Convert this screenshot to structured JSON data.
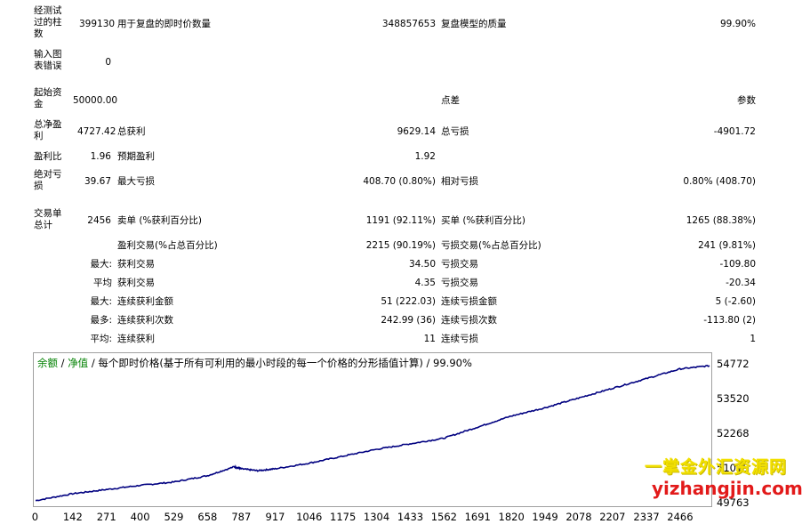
{
  "stats": {
    "bars_label": "经测试过的柱数",
    "bars_value": "399130",
    "ticks_label": "用于复盘的即时价数量",
    "ticks_value": "348857653",
    "quality_label": "复盘模型的质量",
    "quality_value": "99.90%",
    "errors_label": "输入图表错误",
    "errors_value": "0",
    "deposit_label": "起始资金",
    "deposit_value": "50000.00",
    "spread_label": "点差",
    "params_label": "参数",
    "net_label": "总净盈利",
    "net_value": "4727.42",
    "gross_profit_label": "总获利",
    "gross_profit_value": "9629.14",
    "gross_loss_label": "总亏损",
    "gross_loss_value": "-4901.72",
    "pf_label": "盈利比",
    "pf_value": "1.96",
    "payoff_label": "预期盈利",
    "payoff_value": "1.92",
    "abs_dd_label": "绝对亏损",
    "abs_dd_value": "39.67",
    "max_dd_label": "最大亏损",
    "max_dd_value": "408.70 (0.80%)",
    "rel_dd_label": "相对亏损",
    "rel_dd_value": "0.80% (408.70)",
    "trades_label": "交易单总计",
    "trades_value": "2456",
    "short_label": "卖单 (%获利百分比)",
    "short_value": "1191 (92.11%)",
    "long_label": "买单 (%获利百分比)",
    "long_value": "1265 (88.38%)",
    "win_label": "盈利交易(%占总百分比)",
    "win_value": "2215 (90.19%)",
    "loss_label": "亏损交易(%占总百分比)",
    "loss_value": "241 (9.81%)",
    "rows": [
      {
        "prefix": "最大:",
        "l1": "获利交易",
        "v1": "34.50",
        "l2": "亏损交易",
        "v2": "-109.80"
      },
      {
        "prefix": "平均",
        "l1": "获利交易",
        "v1": "4.35",
        "l2": "亏损交易",
        "v2": "-20.34"
      },
      {
        "prefix": "最大:",
        "l1": "连续获利金额",
        "v1": "51 (222.03)",
        "l2": "连续亏损金额",
        "v2": "5 (-2.60)"
      },
      {
        "prefix": "最多:",
        "l1": "连续获利次数",
        "v1": "242.99 (36)",
        "l2": "连续亏损次数",
        "v2": "-113.80 (2)"
      },
      {
        "prefix": "平均:",
        "l1": "连续获利",
        "v1": "11",
        "l2": "连续亏损",
        "v2": "1"
      }
    ]
  },
  "chart": {
    "legend_balance": "余额",
    "legend_sep": " / ",
    "legend_equity": "净值",
    "legend_rest": " / 每个即时价格(基于所有可利用的最小时段的每一个价格的分形插值计算) / 99.90%",
    "balance_color": "#008000",
    "equity_color": "#008000",
    "line_color": "#000080"
  },
  "chart_data": {
    "type": "line",
    "y_ticks": [
      "54772",
      "53520",
      "52268",
      "51015",
      "49763"
    ],
    "x_ticks": [
      "0",
      "142",
      "271",
      "400",
      "529",
      "658",
      "787",
      "917",
      "1046",
      "1175",
      "1304",
      "1433",
      "1562",
      "1691",
      "1820",
      "1949",
      "2078",
      "2207",
      "2337",
      "2466"
    ],
    "ylim": [
      49763,
      54772
    ],
    "xlim": [
      0,
      2466
    ],
    "series": [
      {
        "x": [
          0,
          142,
          271,
          400,
          529,
          658,
          760,
          787,
          850,
          917,
          1046,
          1175,
          1304,
          1433,
          1562,
          1691,
          1820,
          1949,
          2078,
          2207,
          2337,
          2466,
          2580
        ],
        "y": [
          49900,
          50150,
          50300,
          50450,
          50570,
          50800,
          51120,
          51050,
          50980,
          51050,
          51250,
          51500,
          51750,
          51950,
          52150,
          52550,
          52950,
          53250,
          53600,
          53950,
          54300,
          54650,
          54770
        ]
      }
    ]
  },
  "watermark": {
    "line1": "一掌金外汇资源网",
    "line2": "yizhangjin.com"
  }
}
